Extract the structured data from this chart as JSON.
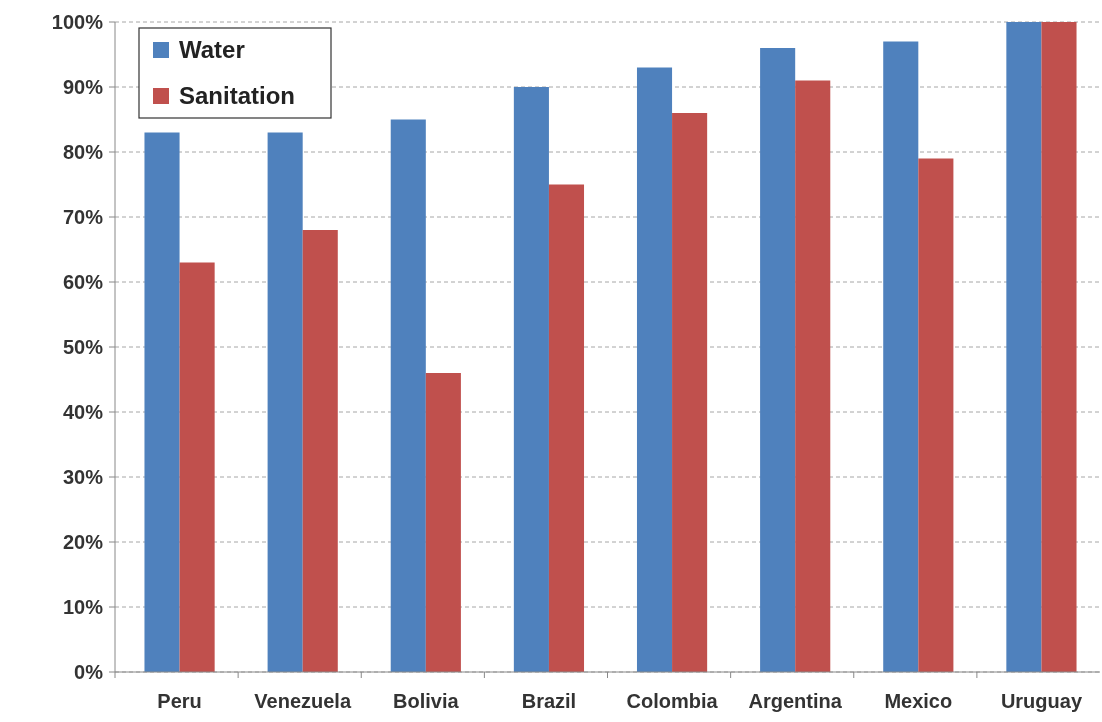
{
  "chart_data": {
    "type": "bar",
    "categories": [
      "Peru",
      "Venezuela",
      "Bolivia",
      "Brazil",
      "Colombia",
      "Argentina",
      "Mexico",
      "Uruguay"
    ],
    "series": [
      {
        "name": "Water",
        "color": "#4f81bd",
        "values": [
          83,
          83,
          85,
          90,
          93,
          96,
          97,
          100
        ]
      },
      {
        "name": "Sanitation",
        "color": "#c0504d",
        "values": [
          63,
          68,
          46,
          75,
          86,
          91,
          79,
          100
        ]
      }
    ],
    "ylim": [
      0,
      100
    ],
    "yticks": [
      {
        "value": 0,
        "label": "0%"
      },
      {
        "value": 10,
        "label": "10%"
      },
      {
        "value": 20,
        "label": "20%"
      },
      {
        "value": 30,
        "label": "30%"
      },
      {
        "value": 40,
        "label": "40%"
      },
      {
        "value": 50,
        "label": "50%"
      },
      {
        "value": 60,
        "label": "60%"
      },
      {
        "value": 70,
        "label": "70%"
      },
      {
        "value": 80,
        "label": "80%"
      },
      {
        "value": 90,
        "label": "90%"
      },
      {
        "value": 100,
        "label": "100%"
      }
    ],
    "grid": "y",
    "legend": "top left"
  }
}
